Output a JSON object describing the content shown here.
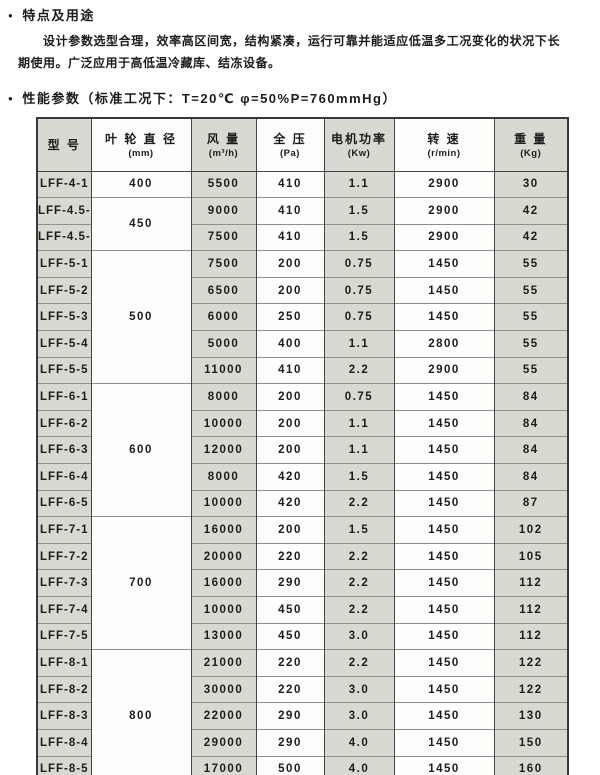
{
  "document": {
    "features": {
      "bullet": "●",
      "title": "特点及用途",
      "body": "设计参数选型合理，效率高区间宽，结构紧凑，运行可靠并能适应低温多工况变化的状况下长期使用。广泛应用于高低温冷藏库、结冻设备。"
    },
    "performance": {
      "bullet": "●",
      "title": "性能参数（标准工况下：T=20℃ φ=50%P=760mmHg）"
    }
  },
  "table": {
    "columns": [
      {
        "key": "model",
        "label": "型 号",
        "unit": "",
        "shaded": true
      },
      {
        "key": "diameter",
        "label": "叶 轮 直 径",
        "unit": "(mm)",
        "shaded": false
      },
      {
        "key": "airflow",
        "label": "风 量",
        "unit": "(m³/h)",
        "shaded": true
      },
      {
        "key": "pressure",
        "label": "全 压",
        "unit": "(Pa)",
        "shaded": false
      },
      {
        "key": "power",
        "label": "电机功率",
        "unit": "(Kw)",
        "shaded": true
      },
      {
        "key": "speed",
        "label": "转 速",
        "unit": "(r/min)",
        "shaded": false
      },
      {
        "key": "weight",
        "label": "重 量",
        "unit": "(Kg)",
        "shaded": true
      }
    ],
    "groups": [
      {
        "diameter": "400",
        "rows": [
          {
            "model": "LFF-4-1",
            "airflow": "5500",
            "pressure": "410",
            "power": "1.1",
            "speed": "2900",
            "weight": "30"
          }
        ]
      },
      {
        "diameter": "450",
        "rows": [
          {
            "model": "LFF-4.5-1",
            "airflow": "9000",
            "pressure": "410",
            "power": "1.5",
            "speed": "2900",
            "weight": "42"
          },
          {
            "model": "LFF-4.5-2",
            "airflow": "7500",
            "pressure": "410",
            "power": "1.5",
            "speed": "2900",
            "weight": "42"
          }
        ]
      },
      {
        "diameter": "500",
        "rows": [
          {
            "model": "LFF-5-1",
            "airflow": "7500",
            "pressure": "200",
            "power": "0.75",
            "speed": "1450",
            "weight": "55"
          },
          {
            "model": "LFF-5-2",
            "airflow": "6500",
            "pressure": "200",
            "power": "0.75",
            "speed": "1450",
            "weight": "55"
          },
          {
            "model": "LFF-5-3",
            "airflow": "6000",
            "pressure": "250",
            "power": "0.75",
            "speed": "1450",
            "weight": "55"
          },
          {
            "model": "LFF-5-4",
            "airflow": "5000",
            "pressure": "400",
            "power": "1.1",
            "speed": "2800",
            "weight": "55"
          },
          {
            "model": "LFF-5-5",
            "airflow": "11000",
            "pressure": "410",
            "power": "2.2",
            "speed": "2900",
            "weight": "55"
          }
        ]
      },
      {
        "diameter": "600",
        "rows": [
          {
            "model": "LFF-6-1",
            "airflow": "8000",
            "pressure": "200",
            "power": "0.75",
            "speed": "1450",
            "weight": "84"
          },
          {
            "model": "LFF-6-2",
            "airflow": "10000",
            "pressure": "200",
            "power": "1.1",
            "speed": "1450",
            "weight": "84"
          },
          {
            "model": "LFF-6-3",
            "airflow": "12000",
            "pressure": "200",
            "power": "1.1",
            "speed": "1450",
            "weight": "84"
          },
          {
            "model": "LFF-6-4",
            "airflow": "8000",
            "pressure": "420",
            "power": "1.5",
            "speed": "1450",
            "weight": "84"
          },
          {
            "model": "LFF-6-5",
            "airflow": "10000",
            "pressure": "420",
            "power": "2.2",
            "speed": "1450",
            "weight": "87"
          }
        ]
      },
      {
        "diameter": "700",
        "rows": [
          {
            "model": "LFF-7-1",
            "airflow": "16000",
            "pressure": "200",
            "power": "1.5",
            "speed": "1450",
            "weight": "102"
          },
          {
            "model": "LFF-7-2",
            "airflow": "20000",
            "pressure": "220",
            "power": "2.2",
            "speed": "1450",
            "weight": "105"
          },
          {
            "model": "LFF-7-3",
            "airflow": "16000",
            "pressure": "290",
            "power": "2.2",
            "speed": "1450",
            "weight": "112"
          },
          {
            "model": "LFF-7-4",
            "airflow": "10000",
            "pressure": "450",
            "power": "2.2",
            "speed": "1450",
            "weight": "112"
          },
          {
            "model": "LFF-7-5",
            "airflow": "13000",
            "pressure": "450",
            "power": "3.0",
            "speed": "1450",
            "weight": "112"
          }
        ]
      },
      {
        "diameter": "800",
        "rows": [
          {
            "model": "LFF-8-1",
            "airflow": "21000",
            "pressure": "220",
            "power": "2.2",
            "speed": "1450",
            "weight": "122"
          },
          {
            "model": "LFF-8-2",
            "airflow": "30000",
            "pressure": "220",
            "power": "3.0",
            "speed": "1450",
            "weight": "122"
          },
          {
            "model": "LFF-8-3",
            "airflow": "22000",
            "pressure": "290",
            "power": "3.0",
            "speed": "1450",
            "weight": "130"
          },
          {
            "model": "LFF-8-4",
            "airflow": "29000",
            "pressure": "290",
            "power": "4.0",
            "speed": "1450",
            "weight": "150"
          },
          {
            "model": "LFF-8-5",
            "airflow": "17000",
            "pressure": "500",
            "power": "4.0",
            "speed": "1450",
            "weight": "160"
          }
        ]
      }
    ],
    "colors": {
      "shaded_cell": "#d9d9d1",
      "plain_cell": "#fdfdfb",
      "border_vertical": "#454545",
      "border_horizontal": "#8f8f8f",
      "border_outer": "#383838",
      "text": "#1c1c1c"
    }
  }
}
